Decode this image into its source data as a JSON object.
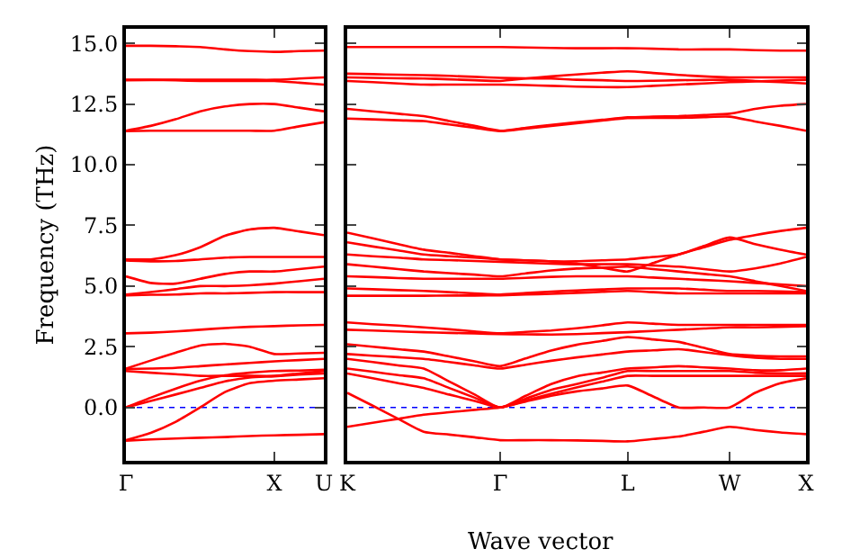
{
  "chart_data": [
    {
      "type": "line",
      "ylabel": "Frequency (THz)",
      "categories": [
        "Γ",
        null,
        null,
        null,
        null,
        null,
        "X",
        null,
        "U"
      ],
      "ylim": [
        -2.2,
        15.6
      ],
      "yticks": [
        {
          "value": 0,
          "label": "0.0"
        },
        {
          "value": 2.5,
          "label": "2.5"
        },
        {
          "value": 5,
          "label": "5.0"
        },
        {
          "value": 7.5,
          "label": "7.5"
        },
        {
          "value": 10,
          "label": "10.0"
        },
        {
          "value": 12.5,
          "label": "12.5"
        },
        {
          "value": 15,
          "label": "15.0"
        }
      ],
      "grid": false,
      "ref_lines": [
        {
          "axis": "y",
          "value": 0,
          "color": "#0000ff",
          "line_style": "dotted"
        }
      ],
      "series": [
        {
          "color": "#ff0000",
          "values": [
            14.9,
            14.9,
            14.88,
            14.85,
            14.75,
            14.68,
            14.65,
            14.68,
            14.7
          ]
        },
        {
          "color": "#ff0000",
          "values": [
            13.5,
            13.5,
            13.5,
            13.5,
            13.5,
            13.5,
            13.5,
            13.55,
            13.6
          ]
        },
        {
          "color": "#ff0000",
          "values": [
            13.48,
            13.49,
            13.48,
            13.45,
            13.45,
            13.45,
            13.45,
            13.38,
            13.3
          ]
        },
        {
          "color": "#ff0000",
          "values": [
            11.4,
            11.6,
            11.87,
            12.2,
            12.4,
            12.5,
            12.5,
            12.35,
            12.2
          ]
        },
        {
          "color": "#ff0000",
          "values": [
            11.38,
            11.4,
            11.4,
            11.4,
            11.4,
            11.4,
            11.4,
            11.58,
            11.75
          ]
        },
        {
          "color": "#ff0000",
          "values": [
            6.1,
            6.1,
            6.27,
            6.6,
            7.07,
            7.33,
            7.4,
            7.25,
            7.1
          ]
        },
        {
          "color": "#ff0000",
          "values": [
            6.05,
            6.02,
            6.03,
            6.1,
            6.17,
            6.2,
            6.2,
            6.2,
            6.2
          ]
        },
        {
          "color": "#ff0000",
          "values": [
            5.4,
            5.13,
            5.1,
            5.3,
            5.5,
            5.6,
            5.6,
            5.7,
            5.8
          ]
        },
        {
          "color": "#ff0000",
          "values": [
            4.65,
            4.75,
            4.87,
            5.0,
            5.0,
            5.03,
            5.1,
            5.2,
            5.3
          ]
        },
        {
          "color": "#ff0000",
          "values": [
            4.62,
            4.64,
            4.65,
            4.7,
            4.7,
            4.72,
            4.75,
            4.75,
            4.75
          ]
        },
        {
          "color": "#ff0000",
          "values": [
            3.05,
            3.08,
            3.13,
            3.2,
            3.27,
            3.32,
            3.35,
            3.38,
            3.4
          ]
        },
        {
          "color": "#ff0000",
          "values": [
            1.6,
            1.93,
            2.25,
            2.55,
            2.62,
            2.5,
            2.2,
            2.22,
            2.25
          ]
        },
        {
          "color": "#ff0000",
          "values": [
            1.58,
            1.6,
            1.63,
            1.7,
            1.77,
            1.83,
            1.9,
            1.95,
            2.0
          ]
        },
        {
          "color": "#ff0000",
          "values": [
            1.5,
            1.43,
            1.37,
            1.3,
            1.3,
            1.3,
            1.3,
            1.4,
            1.5
          ]
        },
        {
          "color": "#ff0000",
          "values": [
            0,
            0.4,
            0.77,
            1.1,
            1.32,
            1.43,
            1.5,
            1.52,
            1.55
          ]
        },
        {
          "color": "#ff0000",
          "values": [
            0,
            0.27,
            0.53,
            0.8,
            1.07,
            1.23,
            1.28,
            1.35,
            1.4
          ]
        },
        {
          "color": "#ff0000",
          "values": [
            -1.35,
            -1.05,
            -0.6,
            0.0,
            0.63,
            1.0,
            1.1,
            1.15,
            1.2
          ]
        },
        {
          "color": "#ff0000",
          "values": [
            -1.37,
            -1.32,
            -1.28,
            -1.25,
            -1.22,
            -1.18,
            -1.15,
            -1.13,
            -1.1
          ]
        }
      ]
    },
    {
      "type": "line",
      "xlabel": "Wave vector",
      "categories": [
        "K",
        null,
        null,
        null,
        null,
        null,
        "Γ",
        null,
        null,
        null,
        null,
        "L",
        null,
        null,
        null,
        "W",
        null,
        null,
        "X"
      ],
      "ylim": [
        -2.2,
        15.6
      ],
      "yticks": [
        {
          "value": 0,
          "label": null
        },
        {
          "value": 2.5,
          "label": null
        },
        {
          "value": 5,
          "label": null
        },
        {
          "value": 7.5,
          "label": null
        },
        {
          "value": 10,
          "label": null
        },
        {
          "value": 12.5,
          "label": null
        },
        {
          "value": 15,
          "label": null
        }
      ],
      "tick_labels": "x",
      "grid": false,
      "ref_lines": [
        {
          "axis": "y",
          "value": 0,
          "color": "#0000ff",
          "line_style": "dotted"
        }
      ],
      "series": [
        {
          "color": "#ff0000",
          "values": [
            14.85,
            14.85,
            14.85,
            14.85,
            14.85,
            14.85,
            14.85,
            14.83,
            14.81,
            14.8,
            14.8,
            14.8,
            14.78,
            14.75,
            14.75,
            14.75,
            14.72,
            14.7,
            14.7
          ]
        },
        {
          "color": "#ff0000",
          "values": [
            13.6,
            13.58,
            13.56,
            13.55,
            13.52,
            13.48,
            13.45,
            13.55,
            13.64,
            13.72,
            13.79,
            13.85,
            13.78,
            13.7,
            13.64,
            13.6,
            13.6,
            13.6,
            13.6
          ]
        },
        {
          "color": "#ff0000",
          "values": [
            13.45,
            13.4,
            13.35,
            13.3,
            13.3,
            13.3,
            13.3,
            13.28,
            13.25,
            13.22,
            13.2,
            13.2,
            13.25,
            13.3,
            13.35,
            13.4,
            13.43,
            13.47,
            13.5
          ]
        },
        {
          "color": "#ff0000",
          "values": [
            13.75,
            13.73,
            13.71,
            13.69,
            13.66,
            13.62,
            13.58,
            13.56,
            13.55,
            13.5,
            13.48,
            13.45,
            13.46,
            13.48,
            13.49,
            13.5,
            13.45,
            13.4,
            13.35
          ]
        },
        {
          "color": "#ff0000",
          "values": [
            12.3,
            12.2,
            12.1,
            12.0,
            11.8,
            11.6,
            11.4,
            11.52,
            11.64,
            11.75,
            11.85,
            11.95,
            11.98,
            12.0,
            12.05,
            12.1,
            12.3,
            12.43,
            12.5
          ]
        },
        {
          "color": "#ff0000",
          "values": [
            11.9,
            11.87,
            11.83,
            11.8,
            11.66,
            11.52,
            11.38,
            11.49,
            11.6,
            11.71,
            11.82,
            11.92,
            11.93,
            11.93,
            11.96,
            11.98,
            11.78,
            11.6,
            11.4
          ]
        },
        {
          "color": "#ff0000",
          "values": [
            7.2,
            6.97,
            6.73,
            6.5,
            6.37,
            6.23,
            6.1,
            6.06,
            6.02,
            5.92,
            5.76,
            5.6,
            5.95,
            6.3,
            6.6,
            6.9,
            7.1,
            7.27,
            7.4
          ]
        },
        {
          "color": "#ff0000",
          "values": [
            6.8,
            6.63,
            6.47,
            6.3,
            6.23,
            6.17,
            6.1,
            6.06,
            6.02,
            6.02,
            6.06,
            6.1,
            6.2,
            6.3,
            6.65,
            7.0,
            6.73,
            6.5,
            6.3
          ]
        },
        {
          "color": "#ff0000",
          "values": [
            6.3,
            6.23,
            6.17,
            6.1,
            6.07,
            6.03,
            6.0,
            5.96,
            5.92,
            5.9,
            5.9,
            5.9,
            5.85,
            5.8,
            5.7,
            5.6,
            5.73,
            5.93,
            6.2
          ]
        },
        {
          "color": "#ff0000",
          "values": [
            5.9,
            5.8,
            5.7,
            5.6,
            5.53,
            5.47,
            5.4,
            5.52,
            5.64,
            5.72,
            5.76,
            5.8,
            5.7,
            5.6,
            5.5,
            5.4,
            5.2,
            5.0,
            4.8
          ]
        },
        {
          "color": "#ff0000",
          "values": [
            5.4,
            5.37,
            5.33,
            5.3,
            5.3,
            5.3,
            5.3,
            5.34,
            5.38,
            5.4,
            5.4,
            5.4,
            5.35,
            5.3,
            5.25,
            5.2,
            5.13,
            5.07,
            5.0
          ]
        },
        {
          "color": "#ff0000",
          "values": [
            4.9,
            4.87,
            4.83,
            4.8,
            4.75,
            4.7,
            4.65,
            4.71,
            4.77,
            4.82,
            4.86,
            4.9,
            4.9,
            4.9,
            4.85,
            4.8,
            4.8,
            4.78,
            4.75
          ]
        },
        {
          "color": "#ff0000",
          "values": [
            4.6,
            4.6,
            4.6,
            4.6,
            4.61,
            4.61,
            4.62,
            4.65,
            4.68,
            4.72,
            4.76,
            4.8,
            4.75,
            4.7,
            4.7,
            4.7,
            4.7,
            4.7,
            4.7
          ]
        },
        {
          "color": "#ff0000",
          "values": [
            3.5,
            3.43,
            3.37,
            3.3,
            3.22,
            3.13,
            3.05,
            3.11,
            3.17,
            3.26,
            3.38,
            3.5,
            3.45,
            3.4,
            3.4,
            3.4,
            3.4,
            3.4,
            3.4
          ]
        },
        {
          "color": "#ff0000",
          "values": [
            3.2,
            3.17,
            3.13,
            3.1,
            3.07,
            3.05,
            3.02,
            3.01,
            3.0,
            3.02,
            3.06,
            3.1,
            3.15,
            3.2,
            3.25,
            3.3,
            3.3,
            3.32,
            3.35
          ]
        },
        {
          "color": "#ff0000",
          "values": [
            2.6,
            2.5,
            2.4,
            2.3,
            2.1,
            1.9,
            1.7,
            2.02,
            2.34,
            2.58,
            2.74,
            2.9,
            2.8,
            2.7,
            2.45,
            2.2,
            2.13,
            2.1,
            2.1
          ]
        },
        {
          "color": "#ff0000",
          "values": [
            2.2,
            2.13,
            2.07,
            2.0,
            1.87,
            1.73,
            1.6,
            1.76,
            1.92,
            2.06,
            2.18,
            2.3,
            2.35,
            2.4,
            2.28,
            2.15,
            2.05,
            2.0,
            2.0
          ]
        },
        {
          "color": "#ff0000",
          "values": [
            2.0,
            1.87,
            1.73,
            1.6,
            1.07,
            0.53,
            0.0,
            0.48,
            0.96,
            1.28,
            1.44,
            1.6,
            1.65,
            1.7,
            1.65,
            1.6,
            1.53,
            1.53,
            1.6
          ]
        },
        {
          "color": "#ff0000",
          "values": [
            1.6,
            1.47,
            1.33,
            1.2,
            0.8,
            0.4,
            0.0,
            0.36,
            0.72,
            0.96,
            1.22,
            1.5,
            1.5,
            1.5,
            1.5,
            1.5,
            1.43,
            1.4,
            1.4
          ]
        },
        {
          "color": "#ff0000",
          "values": [
            1.4,
            1.2,
            1.0,
            0.8,
            0.53,
            0.27,
            0.0,
            0.28,
            0.56,
            0.82,
            1.06,
            1.3,
            1.3,
            1.3,
            1.3,
            1.3,
            1.3,
            1.3,
            1.3
          ]
        },
        {
          "color": "#ff0000",
          "values": [
            0.6,
            0.07,
            -0.47,
            -1.0,
            -1.12,
            -1.23,
            -1.35,
            -1.35,
            -1.35,
            -1.36,
            -1.38,
            -1.4,
            -1.3,
            -1.2,
            -1.0,
            -0.8,
            -0.93,
            -1.03,
            -1.1
          ]
        },
        {
          "color": "#ff0000",
          "values": [
            -0.8,
            -0.63,
            -0.47,
            -0.3,
            -0.2,
            -0.1,
            0.0,
            0.24,
            0.48,
            0.66,
            0.78,
            0.9,
            0.45,
            0.0,
            0.0,
            0.0,
            0.6,
            1.0,
            1.2
          ]
        }
      ]
    }
  ]
}
